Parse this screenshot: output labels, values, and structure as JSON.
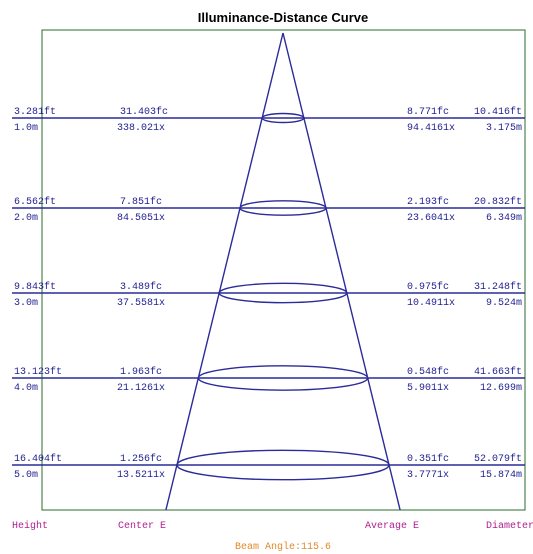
{
  "chart_data": {
    "type": "illuminance-distance cone",
    "title": "Illuminance-Distance Curve",
    "beam_angle_label": "Beam Angle:115.6",
    "column_labels": {
      "height": "Height",
      "center": "Center E",
      "average": "Average E",
      "diameter": "Diameter"
    },
    "rows": [
      {
        "height_ft": "3.281ft",
        "height_m": "1.0m",
        "center_fc": "31.403fc",
        "center_lx": "338.021x",
        "avg_fc": "8.771fc",
        "avg_lx": "94.4161x",
        "diam_ft": "10.416ft",
        "diam_m": "3.175m"
      },
      {
        "height_ft": "6.562ft",
        "height_m": "2.0m",
        "center_fc": "7.851fc",
        "center_lx": "84.5051x",
        "avg_fc": "2.193fc",
        "avg_lx": "23.6041x",
        "diam_ft": "20.832ft",
        "diam_m": "6.349m"
      },
      {
        "height_ft": "9.843ft",
        "height_m": "3.0m",
        "center_fc": "3.489fc",
        "center_lx": "37.5581x",
        "avg_fc": "0.975fc",
        "avg_lx": "10.4911x",
        "diam_ft": "31.248ft",
        "diam_m": "9.524m"
      },
      {
        "height_ft": "13.123ft",
        "height_m": "4.0m",
        "center_fc": "1.963fc",
        "center_lx": "21.1261x",
        "avg_fc": "0.548fc",
        "avg_lx": "5.9011x",
        "diam_ft": "41.663ft",
        "diam_m": "12.699m"
      },
      {
        "height_ft": "16.404ft",
        "height_m": "5.0m",
        "center_fc": "1.256fc",
        "center_lx": "13.5211x",
        "avg_fc": "0.351fc",
        "avg_lx": "3.7771x",
        "diam_ft": "52.079ft",
        "diam_m": "15.874m"
      }
    ],
    "colors": {
      "lines": "#2b2b9a",
      "text": "#1f1f8f",
      "frame": "#2e6b2e",
      "column_labels": "#b0208f",
      "beam_angle": "#e08a2a"
    }
  }
}
